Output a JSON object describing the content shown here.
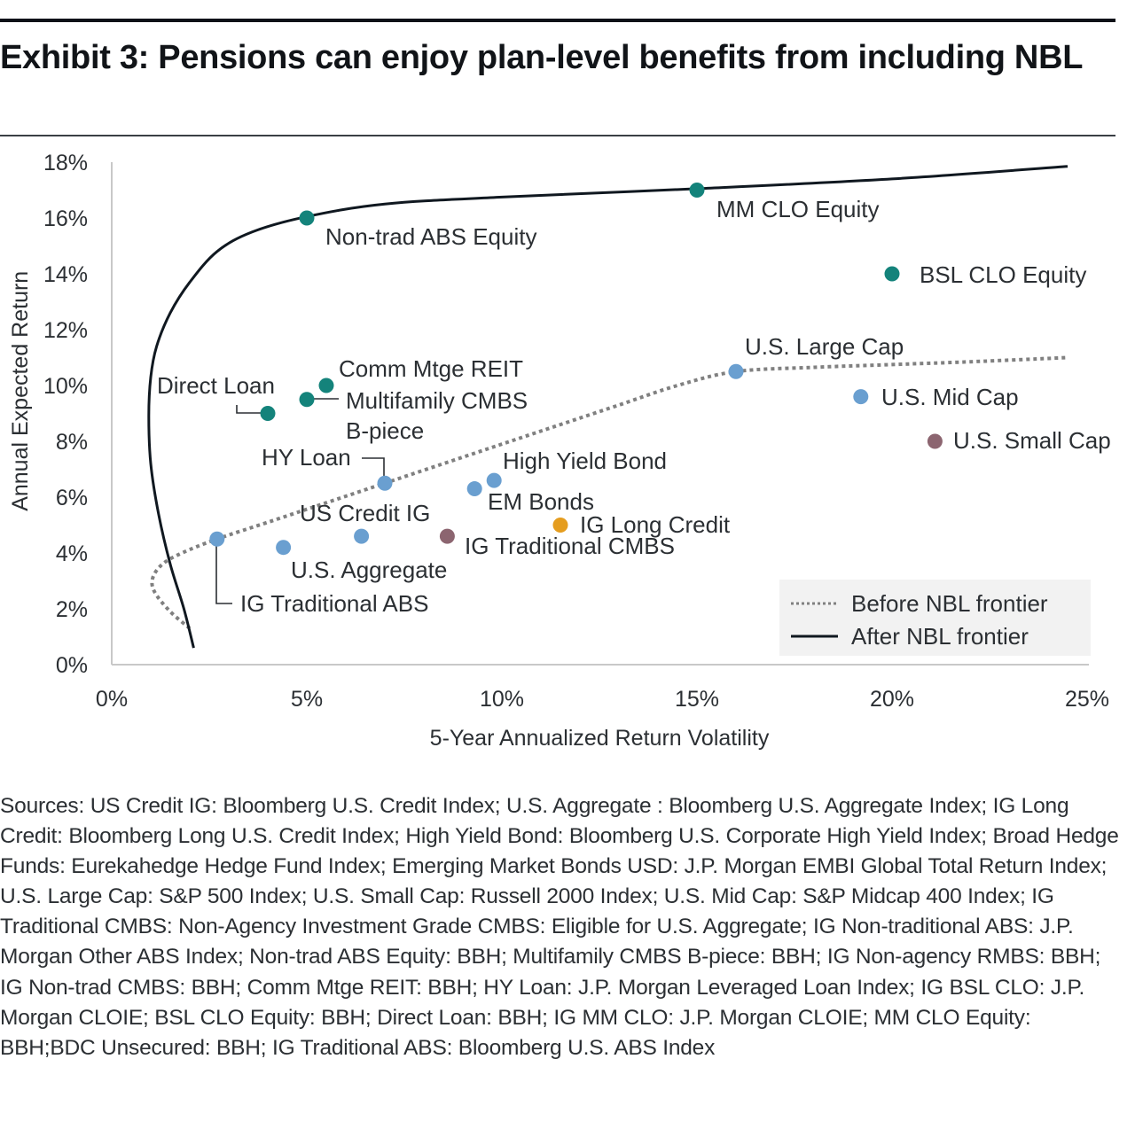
{
  "header": {
    "title": "Exhibit 3: Pensions can enjoy plan-level benefits from including NBL"
  },
  "chart_data": {
    "type": "scatter",
    "title": "Exhibit 3: Pensions can enjoy plan-level benefits from including NBL",
    "xlabel": "5-Year Annualized Return Volatility",
    "ylabel": "Annual Expected Return",
    "xlim": [
      0,
      25
    ],
    "ylim": [
      0,
      18
    ],
    "x_ticks": [
      0,
      5,
      10,
      15,
      20,
      25
    ],
    "y_ticks": [
      0,
      2,
      4,
      6,
      8,
      10,
      12,
      14,
      16,
      18
    ],
    "x_tick_labels": [
      "0%",
      "5%",
      "10%",
      "15%",
      "20%",
      "25%"
    ],
    "y_tick_labels": [
      "0%",
      "2%",
      "4%",
      "6%",
      "8%",
      "10%",
      "12%",
      "14%",
      "16%",
      "18%"
    ],
    "grid": false,
    "legend_position": "bottom-right",
    "colors": {
      "teal": "#14837b",
      "blue": "#6a9fd0",
      "mauve": "#8c6570",
      "orange": "#e59d1f",
      "after_line": "#101820",
      "before_line": "#808080"
    },
    "points": [
      {
        "name": "Non-trad ABS Equity",
        "x": 5.0,
        "y": 16.0,
        "color": "teal"
      },
      {
        "name": "MM CLO Equity",
        "x": 15.0,
        "y": 17.0,
        "color": "teal"
      },
      {
        "name": "BSL CLO Equity",
        "x": 20.0,
        "y": 14.0,
        "color": "teal"
      },
      {
        "name": "Comm Mtge REIT",
        "x": 5.5,
        "y": 10.0,
        "color": "teal"
      },
      {
        "name": "Multifamily CMBS B-piece",
        "x": 5.0,
        "y": 9.5,
        "color": "teal"
      },
      {
        "name": "Direct Loan",
        "x": 4.0,
        "y": 9.0,
        "color": "teal"
      },
      {
        "name": "U.S. Large Cap",
        "x": 16.0,
        "y": 10.5,
        "color": "blue"
      },
      {
        "name": "U.S. Mid Cap",
        "x": 19.2,
        "y": 9.6,
        "color": "blue"
      },
      {
        "name": "U.S. Small Cap",
        "x": 21.1,
        "y": 8.0,
        "color": "mauve"
      },
      {
        "name": "HY Loan",
        "x": 7.0,
        "y": 6.5,
        "color": "blue"
      },
      {
        "name": "High Yield Bond",
        "x": 9.8,
        "y": 6.6,
        "color": "blue"
      },
      {
        "name": "EM Bonds",
        "x": 9.3,
        "y": 6.3,
        "color": "blue"
      },
      {
        "name": "IG Long Credit",
        "x": 11.5,
        "y": 5.0,
        "color": "orange"
      },
      {
        "name": "IG Traditional CMBS",
        "x": 8.6,
        "y": 4.6,
        "color": "mauve"
      },
      {
        "name": "US Credit IG",
        "x": 6.4,
        "y": 4.6,
        "color": "blue"
      },
      {
        "name": "U.S. Aggregate",
        "x": 4.4,
        "y": 4.2,
        "color": "blue"
      },
      {
        "name": "IG Traditional ABS",
        "x": 2.7,
        "y": 4.5,
        "color": "blue"
      }
    ],
    "labels": [
      {
        "text": "Non-trad ABS Equity",
        "lines": [
          "Non-trad ABS Equity"
        ]
      },
      {
        "text": "MM CLO Equity",
        "lines": [
          "MM CLO Equity"
        ]
      },
      {
        "text": "BSL CLO Equity",
        "lines": [
          "BSL CLO Equity"
        ]
      },
      {
        "text": "Comm Mtge REIT",
        "lines": [
          "Comm Mtge REIT"
        ]
      },
      {
        "text": "Multifamily CMBS B-piece",
        "lines": [
          "Multifamily CMBS",
          "B-piece"
        ]
      },
      {
        "text": "Direct Loan",
        "lines": [
          "Direct Loan"
        ]
      },
      {
        "text": "U.S. Large Cap",
        "lines": [
          "U.S. Large Cap"
        ]
      },
      {
        "text": "U.S. Mid Cap",
        "lines": [
          "U.S. Mid Cap"
        ]
      },
      {
        "text": "U.S. Small Cap",
        "lines": [
          "U.S. Small Cap"
        ]
      },
      {
        "text": "HY Loan",
        "lines": [
          "HY Loan"
        ]
      },
      {
        "text": "High Yield Bond",
        "lines": [
          "High Yield Bond"
        ]
      },
      {
        "text": "EM Bonds",
        "lines": [
          "EM Bonds"
        ]
      },
      {
        "text": "IG Long Credit",
        "lines": [
          "IG Long Credit"
        ]
      },
      {
        "text": "IG Traditional CMBS",
        "lines": [
          "IG Traditional CMBS"
        ]
      },
      {
        "text": "US Credit IG",
        "lines": [
          "US Credit IG"
        ]
      },
      {
        "text": "U.S. Aggregate",
        "lines": [
          "U.S. Aggregate"
        ]
      },
      {
        "text": "IG Traditional ABS",
        "lines": [
          "IG Traditional ABS"
        ]
      }
    ],
    "series": [
      {
        "name": "Before NBL frontier",
        "style": "dotted",
        "color": "before_line",
        "points": [
          [
            2.0,
            1.3
          ],
          [
            1.5,
            1.9
          ],
          [
            1.1,
            2.6
          ],
          [
            1.05,
            3.1
          ],
          [
            1.3,
            3.6
          ],
          [
            1.8,
            4.0
          ],
          [
            2.7,
            4.5
          ],
          [
            4.0,
            5.1
          ],
          [
            5.5,
            5.8
          ],
          [
            7.0,
            6.5
          ],
          [
            8.5,
            7.2
          ],
          [
            10.0,
            7.9
          ],
          [
            11.5,
            8.6
          ],
          [
            13.0,
            9.3
          ],
          [
            14.5,
            10.0
          ],
          [
            16.0,
            10.5
          ],
          [
            18.0,
            10.65
          ],
          [
            20.0,
            10.75
          ],
          [
            22.0,
            10.85
          ],
          [
            24.5,
            11.0
          ]
        ]
      },
      {
        "name": "After NBL frontier",
        "style": "solid",
        "color": "after_line",
        "points": [
          [
            2.1,
            0.6
          ],
          [
            1.85,
            2.0
          ],
          [
            1.5,
            3.6
          ],
          [
            1.2,
            5.4
          ],
          [
            1.0,
            7.2
          ],
          [
            0.95,
            8.9
          ],
          [
            1.0,
            10.3
          ],
          [
            1.15,
            11.4
          ],
          [
            1.5,
            12.6
          ],
          [
            2.0,
            13.7
          ],
          [
            2.7,
            14.8
          ],
          [
            3.6,
            15.5
          ],
          [
            5.0,
            16.05
          ],
          [
            7.0,
            16.5
          ],
          [
            10.0,
            16.75
          ],
          [
            15.0,
            17.05
          ],
          [
            20.0,
            17.4
          ],
          [
            24.5,
            17.85
          ]
        ]
      }
    ],
    "legend": [
      {
        "label": "Before NBL frontier",
        "style": "dotted"
      },
      {
        "label": "After NBL frontier",
        "style": "solid"
      }
    ]
  },
  "footer": {
    "sources": "Sources: US Credit IG: Bloomberg U.S. Credit Index; U.S. Aggregate : Bloomberg U.S. Aggregate Index; IG Long Credit: Bloomberg Long U.S. Credit Index; High Yield Bond: Bloomberg U.S. Corporate High Yield Index; Broad Hedge Funds: Eurekahedge Hedge Fund Index; Emerging Market Bonds USD: J.P. Morgan EMBI Global Total Return Index; U.S. Large Cap: S&P 500 Index; U.S. Small Cap: Russell 2000 Index; U.S. Mid Cap: S&P Midcap 400 Index; IG Traditional CMBS: Non-Agency Investment Grade CMBS: Eligible for U.S. Aggregate; IG Non-traditional ABS: J.P. Morgan Other ABS Index; Non-trad ABS Equity: BBH; Multifamily CMBS B-piece: BBH; IG Non-agency RMBS: BBH; IG Non-trad CMBS: BBH; Comm Mtge REIT: BBH; HY Loan: J.P. Morgan Leveraged Loan Index; IG BSL CLO: J.P. Morgan CLOIE; BSL CLO Equity: BBH; Direct Loan: BBH; IG MM CLO: J.P. Morgan CLOIE; MM CLO Equity: BBH;BDC Unsecured: BBH; IG Traditional ABS: Bloomberg U.S. ABS Index"
  }
}
